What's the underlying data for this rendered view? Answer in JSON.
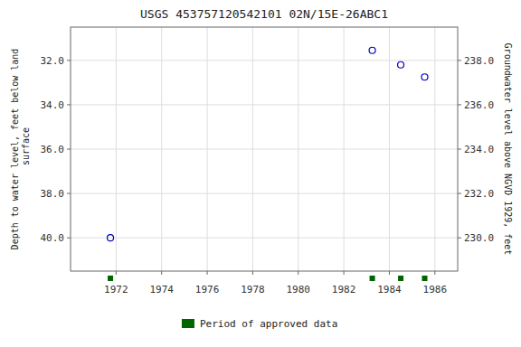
{
  "chart_data": {
    "type": "scatter",
    "title": "USGS 453757120542101 02N/15E-26ABC1",
    "y_label": "Depth to water level, feet below land\n surface",
    "y2_label": "Groundwater level above NGVD 1929, feet",
    "xlim": [
      1970.0,
      1987.0
    ],
    "xticks": [
      1972,
      1974,
      1976,
      1978,
      1980,
      1982,
      1984,
      1986
    ],
    "ylim": [
      41.5,
      30.5
    ],
    "yticks": [
      {
        "value": 32.0,
        "label": "32.0"
      },
      {
        "value": 34.0,
        "label": "34.0"
      },
      {
        "value": 36.0,
        "label": "36.0"
      },
      {
        "value": 38.0,
        "label": "38.0"
      },
      {
        "value": 40.0,
        "label": "40.0"
      }
    ],
    "y2lim": [
      228.5,
      239.5
    ],
    "y2ticks": [
      {
        "value": 238.0,
        "label": "238.0"
      },
      {
        "value": 236.0,
        "label": "236.0"
      },
      {
        "value": 234.0,
        "label": "234.0"
      },
      {
        "value": 232.0,
        "label": "232.0"
      },
      {
        "value": 230.0,
        "label": "230.0"
      }
    ],
    "grid": true,
    "legend": "bottom",
    "series": [
      {
        "x": [
          1971.75,
          1983.25,
          1984.5,
          1985.55
        ],
        "values": [
          40.0,
          31.55,
          32.2,
          32.75
        ],
        "color": "#0000bb",
        "marker": "open-circle"
      },
      {
        "name": "Period of approved data",
        "type": "period",
        "x": [
          1971.75,
          1983.25,
          1984.5,
          1985.55
        ],
        "color": "#006400",
        "marker": "square"
      }
    ]
  }
}
